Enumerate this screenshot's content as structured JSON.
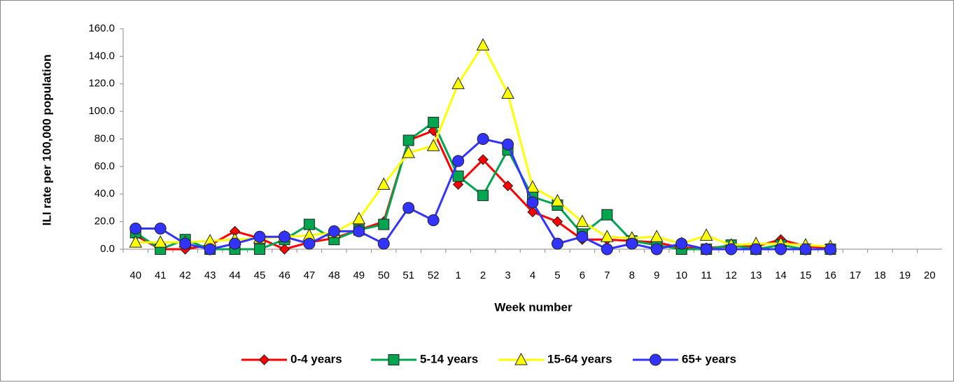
{
  "chart_data": {
    "type": "line",
    "x_label": "Week number",
    "y_label": "ILI rate per 100,000 population",
    "categories": [
      "40",
      "41",
      "42",
      "43",
      "44",
      "45",
      "46",
      "47",
      "48",
      "49",
      "50",
      "51",
      "52",
      "1",
      "2",
      "3",
      "4",
      "5",
      "6",
      "7",
      "8",
      "9",
      "10",
      "11",
      "12",
      "13",
      "14",
      "15",
      "16",
      "17",
      "18",
      "19",
      "20"
    ],
    "ylim": [
      0,
      160
    ],
    "yticks": [
      {
        "value": 0,
        "label": "0.0"
      },
      {
        "value": 20,
        "label": "20.0"
      },
      {
        "value": 40,
        "label": "40.0"
      },
      {
        "value": 60,
        "label": "60.0"
      },
      {
        "value": 80,
        "label": "80.0"
      },
      {
        "value": 100,
        "label": "100.0"
      },
      {
        "value": 120,
        "label": "120.0"
      },
      {
        "value": 140,
        "label": "140.0"
      },
      {
        "value": 160,
        "label": "160.0"
      }
    ],
    "legend": "bottom",
    "series": [
      {
        "name": "0-4 years",
        "color": "#ff0000",
        "marker": "diamond",
        "values": [
          10,
          0,
          0,
          3,
          13,
          8,
          0,
          5,
          8,
          14,
          20,
          79,
          86,
          47,
          65,
          46,
          27,
          20,
          7,
          7,
          6,
          5,
          1,
          1,
          2,
          2,
          7,
          2,
          1,
          null,
          null,
          null,
          null
        ]
      },
      {
        "name": "5-14 years",
        "color": "#00a550",
        "marker": "square",
        "values": [
          12,
          0,
          7,
          0,
          0,
          0,
          7,
          18,
          7,
          14,
          18,
          79,
          92,
          53,
          39,
          72,
          38,
          32,
          11,
          25,
          6,
          3,
          0,
          0,
          3,
          0,
          3,
          0,
          0,
          null,
          null,
          null,
          null
        ]
      },
      {
        "name": "15-64 years",
        "color": "#ffff00",
        "marker": "triangle",
        "values": [
          5,
          5,
          5,
          6,
          7,
          8,
          9,
          10,
          12,
          22,
          47,
          70,
          75,
          120,
          148,
          113,
          45,
          35,
          20,
          9,
          8,
          9,
          4,
          10,
          3,
          4,
          4,
          3,
          2,
          null,
          null,
          null,
          null
        ]
      },
      {
        "name": "65+ years",
        "color": "#3333ff",
        "marker": "circle",
        "values": [
          15,
          15,
          4,
          0,
          4,
          9,
          9,
          4,
          13,
          13,
          4,
          30,
          21,
          64,
          80,
          76,
          34,
          4,
          9,
          0,
          4,
          0,
          4,
          0,
          0,
          0,
          0,
          0,
          0,
          null,
          null,
          null,
          null
        ]
      }
    ]
  }
}
